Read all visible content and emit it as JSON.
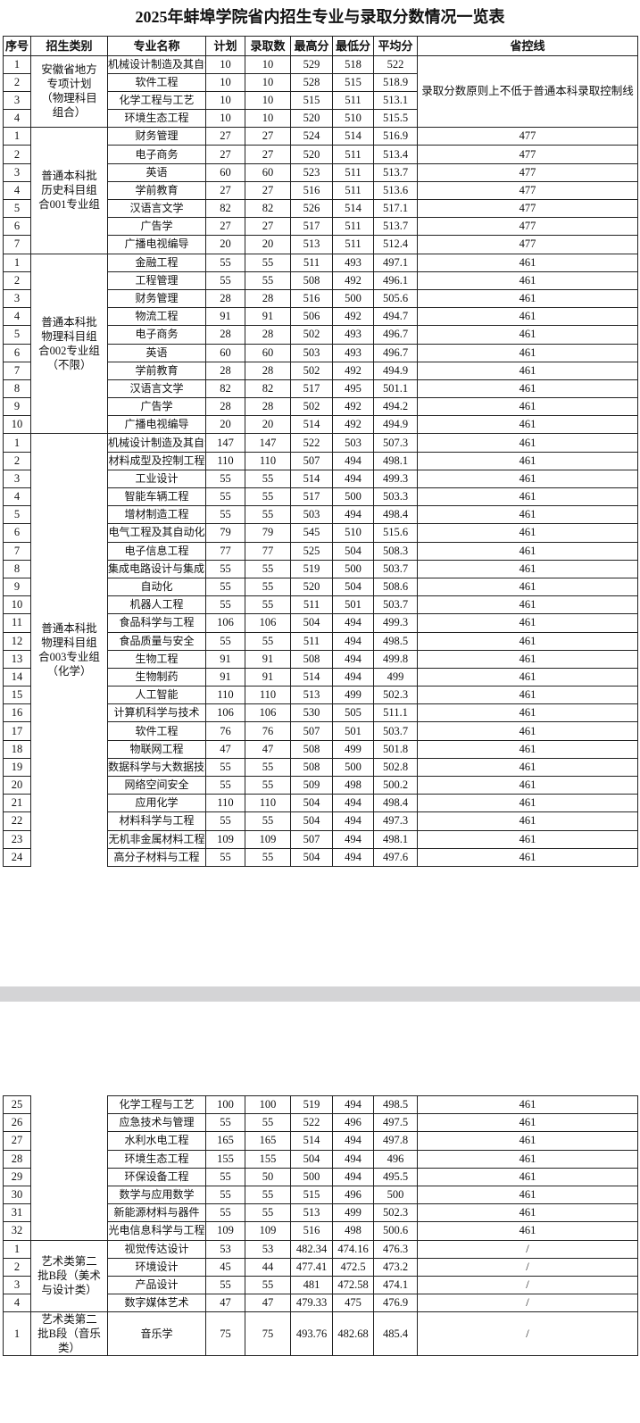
{
  "title": "2025年蚌埠学院省内招生专业与录取分数情况一览表",
  "columns": [
    "序号",
    "招生类别",
    "专业名称",
    "计划",
    "录取数",
    "最高分",
    "最低分",
    "平均分",
    "省控线"
  ],
  "page1": {
    "groups": [
      {
        "category": "安徽省地方专项计划（物理科目组合）",
        "control_line_note": "录取分数原则上不低于普通本科录取控制线",
        "rows": [
          [
            "1",
            "机械设计制造及其自动化",
            "10",
            "10",
            "529",
            "518",
            "522"
          ],
          [
            "2",
            "软件工程",
            "10",
            "10",
            "528",
            "515",
            "518.9"
          ],
          [
            "3",
            "化学工程与工艺",
            "10",
            "10",
            "515",
            "511",
            "513.1"
          ],
          [
            "4",
            "环境生态工程",
            "10",
            "10",
            "520",
            "510",
            "515.5"
          ]
        ]
      },
      {
        "category": "普通本科批历史科目组合001专业组",
        "rows": [
          [
            "1",
            "财务管理",
            "27",
            "27",
            "524",
            "514",
            "516.9",
            "477"
          ],
          [
            "2",
            "电子商务",
            "27",
            "27",
            "520",
            "511",
            "513.4",
            "477"
          ],
          [
            "3",
            "英语",
            "60",
            "60",
            "523",
            "511",
            "513.7",
            "477"
          ],
          [
            "4",
            "学前教育",
            "27",
            "27",
            "516",
            "511",
            "513.6",
            "477"
          ],
          [
            "5",
            "汉语言文学",
            "82",
            "82",
            "526",
            "514",
            "517.1",
            "477"
          ],
          [
            "6",
            "广告学",
            "27",
            "27",
            "517",
            "511",
            "513.7",
            "477"
          ],
          [
            "7",
            "广播电视编导",
            "20",
            "20",
            "513",
            "511",
            "512.4",
            "477"
          ]
        ]
      },
      {
        "category": "普通本科批物理科目组合002专业组（不限）",
        "rows": [
          [
            "1",
            "金融工程",
            "55",
            "55",
            "511",
            "493",
            "497.1",
            "461"
          ],
          [
            "2",
            "工程管理",
            "55",
            "55",
            "508",
            "492",
            "496.1",
            "461"
          ],
          [
            "3",
            "财务管理",
            "28",
            "28",
            "516",
            "500",
            "505.6",
            "461"
          ],
          [
            "4",
            "物流工程",
            "91",
            "91",
            "506",
            "492",
            "494.7",
            "461"
          ],
          [
            "5",
            "电子商务",
            "28",
            "28",
            "502",
            "493",
            "496.7",
            "461"
          ],
          [
            "6",
            "英语",
            "60",
            "60",
            "503",
            "493",
            "496.7",
            "461"
          ],
          [
            "7",
            "学前教育",
            "28",
            "28",
            "502",
            "492",
            "494.9",
            "461"
          ],
          [
            "8",
            "汉语言文学",
            "82",
            "82",
            "517",
            "495",
            "501.1",
            "461"
          ],
          [
            "9",
            "广告学",
            "28",
            "28",
            "502",
            "492",
            "494.2",
            "461"
          ],
          [
            "10",
            "广播电视编导",
            "20",
            "20",
            "514",
            "492",
            "494.9",
            "461"
          ]
        ]
      },
      {
        "category": "普通本科批物理科目组合003专业组（化学）",
        "continues": true,
        "rows": [
          [
            "1",
            "机械设计制造及其自动化",
            "147",
            "147",
            "522",
            "503",
            "507.3",
            "461"
          ],
          [
            "2",
            "材料成型及控制工程",
            "110",
            "110",
            "507",
            "494",
            "498.1",
            "461"
          ],
          [
            "3",
            "工业设计",
            "55",
            "55",
            "514",
            "494",
            "499.3",
            "461"
          ],
          [
            "4",
            "智能车辆工程",
            "55",
            "55",
            "517",
            "500",
            "503.3",
            "461"
          ],
          [
            "5",
            "增材制造工程",
            "55",
            "55",
            "503",
            "494",
            "498.4",
            "461"
          ],
          [
            "6",
            "电气工程及其自动化",
            "79",
            "79",
            "545",
            "510",
            "515.6",
            "461"
          ],
          [
            "7",
            "电子信息工程",
            "77",
            "77",
            "525",
            "504",
            "508.3",
            "461"
          ],
          [
            "8",
            "集成电路设计与集成系统",
            "55",
            "55",
            "519",
            "500",
            "503.7",
            "461"
          ],
          [
            "9",
            "自动化",
            "55",
            "55",
            "520",
            "504",
            "508.6",
            "461"
          ],
          [
            "10",
            "机器人工程",
            "55",
            "55",
            "511",
            "501",
            "503.7",
            "461"
          ],
          [
            "11",
            "食品科学与工程",
            "106",
            "106",
            "504",
            "494",
            "499.3",
            "461"
          ],
          [
            "12",
            "食品质量与安全",
            "55",
            "55",
            "511",
            "494",
            "498.5",
            "461"
          ],
          [
            "13",
            "生物工程",
            "91",
            "91",
            "508",
            "494",
            "499.8",
            "461"
          ],
          [
            "14",
            "生物制药",
            "91",
            "91",
            "514",
            "494",
            "499",
            "461"
          ],
          [
            "15",
            "人工智能",
            "110",
            "110",
            "513",
            "499",
            "502.3",
            "461"
          ],
          [
            "16",
            "计算机科学与技术",
            "106",
            "106",
            "530",
            "505",
            "511.1",
            "461"
          ],
          [
            "17",
            "软件工程",
            "76",
            "76",
            "507",
            "501",
            "503.7",
            "461"
          ],
          [
            "18",
            "物联网工程",
            "47",
            "47",
            "508",
            "499",
            "501.8",
            "461"
          ],
          [
            "19",
            "数据科学与大数据技术",
            "55",
            "55",
            "508",
            "500",
            "502.8",
            "461"
          ],
          [
            "20",
            "网络空间安全",
            "55",
            "55",
            "509",
            "498",
            "500.2",
            "461"
          ],
          [
            "21",
            "应用化学",
            "110",
            "110",
            "504",
            "494",
            "498.4",
            "461"
          ],
          [
            "22",
            "材料科学与工程",
            "55",
            "55",
            "504",
            "494",
            "497.3",
            "461"
          ],
          [
            "23",
            "无机非金属材料工程",
            "109",
            "109",
            "507",
            "494",
            "498.1",
            "461"
          ],
          [
            "24",
            "高分子材料与工程",
            "55",
            "55",
            "504",
            "494",
            "497.6",
            "461"
          ]
        ]
      }
    ]
  },
  "page2": {
    "groups": [
      {
        "continued": true,
        "rows": [
          [
            "25",
            "化学工程与工艺",
            "100",
            "100",
            "519",
            "494",
            "498.5",
            "461"
          ],
          [
            "26",
            "应急技术与管理",
            "55",
            "55",
            "522",
            "496",
            "497.5",
            "461"
          ],
          [
            "27",
            "水利水电工程",
            "165",
            "165",
            "514",
            "494",
            "497.8",
            "461"
          ],
          [
            "28",
            "环境生态工程",
            "155",
            "155",
            "504",
            "494",
            "496",
            "461"
          ],
          [
            "29",
            "环保设备工程",
            "55",
            "50",
            "500",
            "494",
            "495.5",
            "461"
          ],
          [
            "30",
            "数学与应用数学",
            "55",
            "55",
            "515",
            "496",
            "500",
            "461"
          ],
          [
            "31",
            "新能源材料与器件",
            "55",
            "55",
            "513",
            "499",
            "502.3",
            "461"
          ],
          [
            "32",
            "光电信息科学与工程",
            "109",
            "109",
            "516",
            "498",
            "500.6",
            "461"
          ]
        ]
      },
      {
        "category": "艺术类第二批B段（美术与设计类）",
        "rows": [
          [
            "1",
            "视觉传达设计",
            "53",
            "53",
            "482.34",
            "474.16",
            "476.3",
            "/"
          ],
          [
            "2",
            "环境设计",
            "45",
            "44",
            "477.41",
            "472.5",
            "473.2",
            "/"
          ],
          [
            "3",
            "产品设计",
            "55",
            "55",
            "481",
            "472.58",
            "474.1",
            "/"
          ],
          [
            "4",
            "数字媒体艺术",
            "47",
            "47",
            "479.33",
            "475",
            "476.9",
            "/"
          ]
        ]
      },
      {
        "category": "艺术类第二批B段（音乐类）",
        "tall": true,
        "rows": [
          [
            "1",
            "音乐学",
            "75",
            "75",
            "493.76",
            "482.68",
            "485.4",
            "/"
          ]
        ]
      }
    ]
  },
  "colors": {
    "border": "#222222",
    "band": "#d4d4d6"
  }
}
